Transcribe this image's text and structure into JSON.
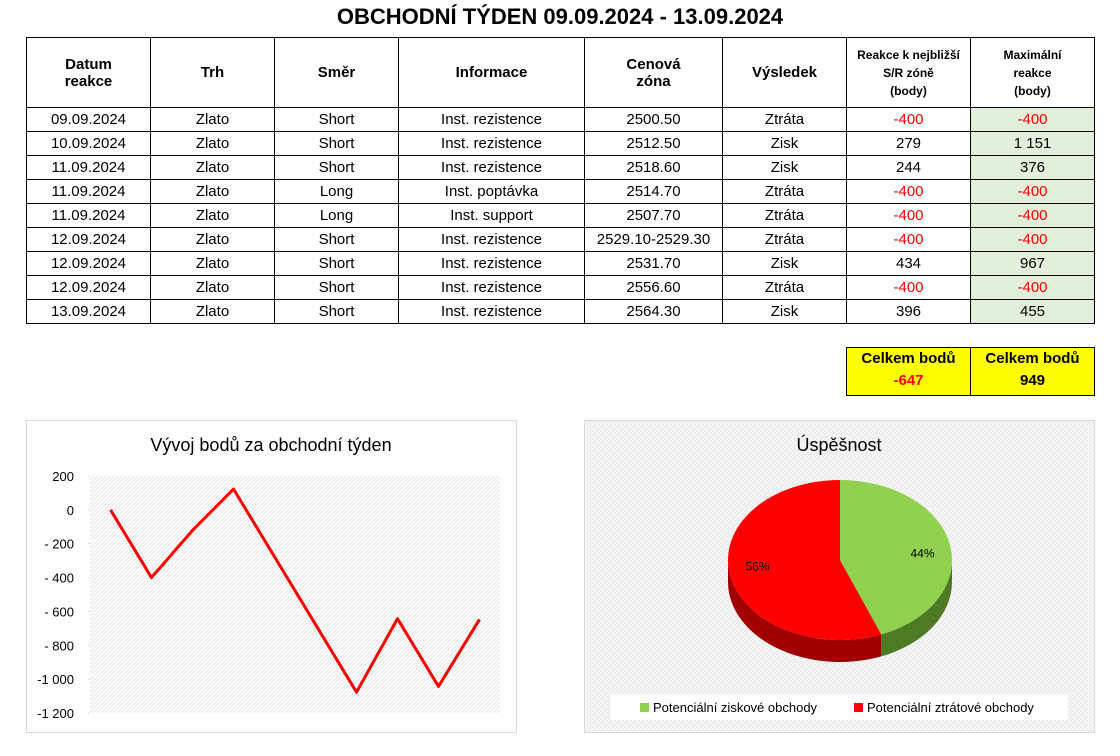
{
  "title": "OBCHODNÍ TÝDEN 09.09.2024 - 13.09.2024",
  "table": {
    "header": [
      "Datum\nreakce",
      "Trh",
      "Směr",
      "Informace",
      "Cenová\nzóna",
      "Výsledek",
      "Reakce k nejbližší\nS/R zóně\n(body)",
      "Maximální\nreakce\n(body)"
    ],
    "rows": [
      [
        "09.09.2024",
        "Zlato",
        "Short",
        "Inst. rezistence",
        "2500.50",
        "Ztráta",
        "-400",
        "-400"
      ],
      [
        "10.09.2024",
        "Zlato",
        "Short",
        "Inst. rezistence",
        "2512.50",
        "Zisk",
        "279",
        "1 151"
      ],
      [
        "11.09.2024",
        "Zlato",
        "Short",
        "Inst. rezistence",
        "2518.60",
        "Zisk",
        "244",
        "376"
      ],
      [
        "11.09.2024",
        "Zlato",
        "Long",
        "Inst. poptávka",
        "2514.70",
        "Ztráta",
        "-400",
        "-400"
      ],
      [
        "11.09.2024",
        "Zlato",
        "Long",
        "Inst. support",
        "2507.70",
        "Ztráta",
        "-400",
        "-400"
      ],
      [
        "12.09.2024",
        "Zlato",
        "Short",
        "Inst. rezistence",
        "2529.10-2529.30",
        "Ztráta",
        "-400",
        "-400"
      ],
      [
        "12.09.2024",
        "Zlato",
        "Short",
        "Inst. rezistence",
        "2531.70",
        "Zisk",
        "434",
        "967"
      ],
      [
        "12.09.2024",
        "Zlato",
        "Short",
        "Inst. rezistence",
        "2556.60",
        "Ztráta",
        "-400",
        "-400"
      ],
      [
        "13.09.2024",
        "Zlato",
        "Short",
        "Inst. rezistence",
        "2564.30",
        "Zisk",
        "396",
        "455"
      ]
    ]
  },
  "totals": [
    {
      "label": "Celkem bodů",
      "value": -647
    },
    {
      "label": "Celkem bodů",
      "value": 949
    }
  ],
  "chart_data": [
    {
      "type": "line",
      "title": "Vývoj bodů za obchodní týden",
      "color": "#ff0000",
      "values": [
        0,
        -400,
        -121,
        123,
        -277,
        -677,
        -1077,
        -643,
        -1043,
        -647
      ],
      "ylim": [
        -1200,
        200
      ],
      "yticks": [
        200,
        0,
        {
          "value": -200,
          "label": "- 200"
        },
        {
          "value": -400,
          "label": "- 400"
        },
        {
          "value": -600,
          "label": "- 600"
        },
        {
          "value": -800,
          "label": "- 800"
        },
        {
          "value": -1000,
          "label": "-1 000"
        },
        {
          "value": -1200,
          "label": "-1 200"
        }
      ]
    },
    {
      "type": "pie",
      "title": "Úspěšnost",
      "categories": [
        "Potenciální ziskové obchody",
        "Potenciální ztrátové obchody"
      ],
      "values": [
        44,
        56
      ],
      "value_labels": [
        "44%",
        "56%"
      ],
      "colors": [
        "#92d050",
        "#ff0000"
      ],
      "side_colors": [
        "#4e7a24",
        "#a00000"
      ]
    }
  ]
}
